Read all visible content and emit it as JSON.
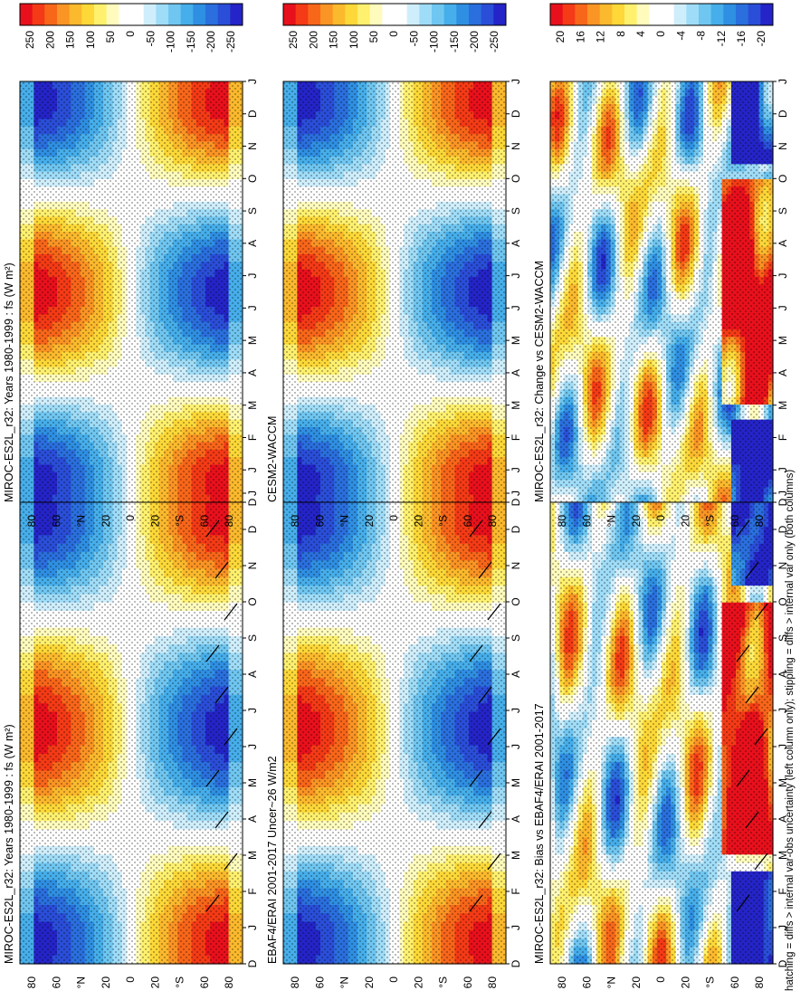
{
  "chart_data": [
    {
      "type": "heatmap",
      "title": "MIROC-ES2L_r32: Years 1980-1999 : fs (W m²)",
      "x_ticks": [
        "D",
        "J",
        "F",
        "M",
        "A",
        "M",
        "J",
        "J",
        "A",
        "S",
        "O",
        "N",
        "D",
        "J"
      ],
      "y_ticks": [
        "80",
        "60",
        "°N",
        "20",
        "0",
        "20",
        "°S",
        "60",
        "80"
      ],
      "colorbar": {
        "ticks": [
          "250",
          "200",
          "150",
          "100",
          "50",
          "0",
          "-50",
          "-100",
          "-150",
          "-250"
        ]
      },
      "pattern": "shortwave",
      "hatch": true
    },
    {
      "type": "heatmap",
      "title": "EBAF4/ERAI 2001-2017 Uncer~26 W/m2",
      "x_ticks": [
        "D",
        "J",
        "F",
        "M",
        "A",
        "M",
        "J",
        "J",
        "A",
        "S",
        "O",
        "N",
        "D",
        "J"
      ],
      "y_ticks": [
        "80",
        "60",
        "°N",
        "20",
        "0",
        "20",
        "°S",
        "60",
        "80"
      ],
      "colorbar": {
        "ticks": [
          "250",
          "200",
          "150",
          "100",
          "50",
          "0",
          "-50",
          "-100",
          "-150",
          "-200",
          "-250"
        ]
      },
      "pattern": "shortwave",
      "hatch": true
    },
    {
      "type": "heatmap",
      "title": "MIROC-ES2L_r32: Bias vs EBAF4/ERAI 2001-2017",
      "x_ticks": [
        "D",
        "J",
        "F",
        "M",
        "A",
        "M",
        "J",
        "J",
        "A",
        "S",
        "O",
        "N",
        "D",
        "J"
      ],
      "y_ticks": [
        "80",
        "60",
        "°N",
        "20",
        "0",
        "20",
        "°S",
        "60",
        "80"
      ],
      "colorbar": {
        "ticks": [
          "20",
          "16",
          "12",
          "8",
          "4",
          "0",
          "-4",
          "-8",
          "-12",
          "-16",
          "-20"
        ]
      },
      "pattern": "bias",
      "hatch": true
    },
    {
      "type": "heatmap",
      "title": "MIROC-ES2L_r32: Years 1980-1999 : fs (W m²)",
      "x_ticks": [
        "D",
        "J",
        "F",
        "M",
        "A",
        "M",
        "J",
        "J",
        "A",
        "S",
        "O",
        "N",
        "D",
        "J"
      ],
      "y_ticks": [
        "80",
        "60",
        "°N",
        "20",
        "0",
        "20",
        "°S",
        "60",
        "80"
      ],
      "colorbar": {
        "ticks": [
          "250",
          "200",
          "150",
          "100",
          "50",
          "0",
          "-50",
          "-100",
          "-150",
          "-200",
          "-250"
        ]
      },
      "pattern": "shortwave",
      "hatch": false
    },
    {
      "type": "heatmap",
      "title": "CESM2-WACCM",
      "x_ticks": [
        "D",
        "J",
        "F",
        "M",
        "A",
        "M",
        "J",
        "J",
        "A",
        "S",
        "O",
        "N",
        "D",
        "J"
      ],
      "y_ticks": [
        "80",
        "60",
        "°N",
        "20",
        "0",
        "20",
        "°S",
        "60",
        "80"
      ],
      "colorbar": {
        "ticks": [
          "250",
          "200",
          "150",
          "100",
          "50",
          "0",
          "-50",
          "-100",
          "-150",
          "-200",
          "-250"
        ]
      },
      "pattern": "shortwave",
      "hatch": false
    },
    {
      "type": "heatmap",
      "title": "MIROC-ES2L_r32: Change vs CESM2-WACCM",
      "x_ticks": [
        "D",
        "J",
        "F",
        "M",
        "A",
        "M",
        "J",
        "J",
        "A",
        "S",
        "O",
        "N",
        "D",
        "J"
      ],
      "y_ticks": [
        "80",
        "60",
        "°N",
        "20",
        "0",
        "20",
        "°S",
        "60",
        "80"
      ],
      "colorbar": {
        "ticks": [
          "20",
          "16",
          "12",
          "8",
          "4",
          "0",
          "-4",
          "-8",
          "-12",
          "-16",
          "-20"
        ]
      },
      "pattern": "bias",
      "hatch": false
    }
  ],
  "footnote": "hatching = diffs > internal var-obs uncertainty (left column only); stippling = diffs > internal var only (both columns)",
  "palette": [
    "#e8101c",
    "#f43a16",
    "#f8661a",
    "#fa9424",
    "#fbb92d",
    "#fdd838",
    "#fff06e",
    "#fffbbd",
    "#ffffff",
    "#ffffff",
    "#cfeefc",
    "#9fdcf7",
    "#6fc6f0",
    "#46aeea",
    "#2f8fe2",
    "#2a6fdd",
    "#2a4ed8",
    "#2424c8"
  ]
}
